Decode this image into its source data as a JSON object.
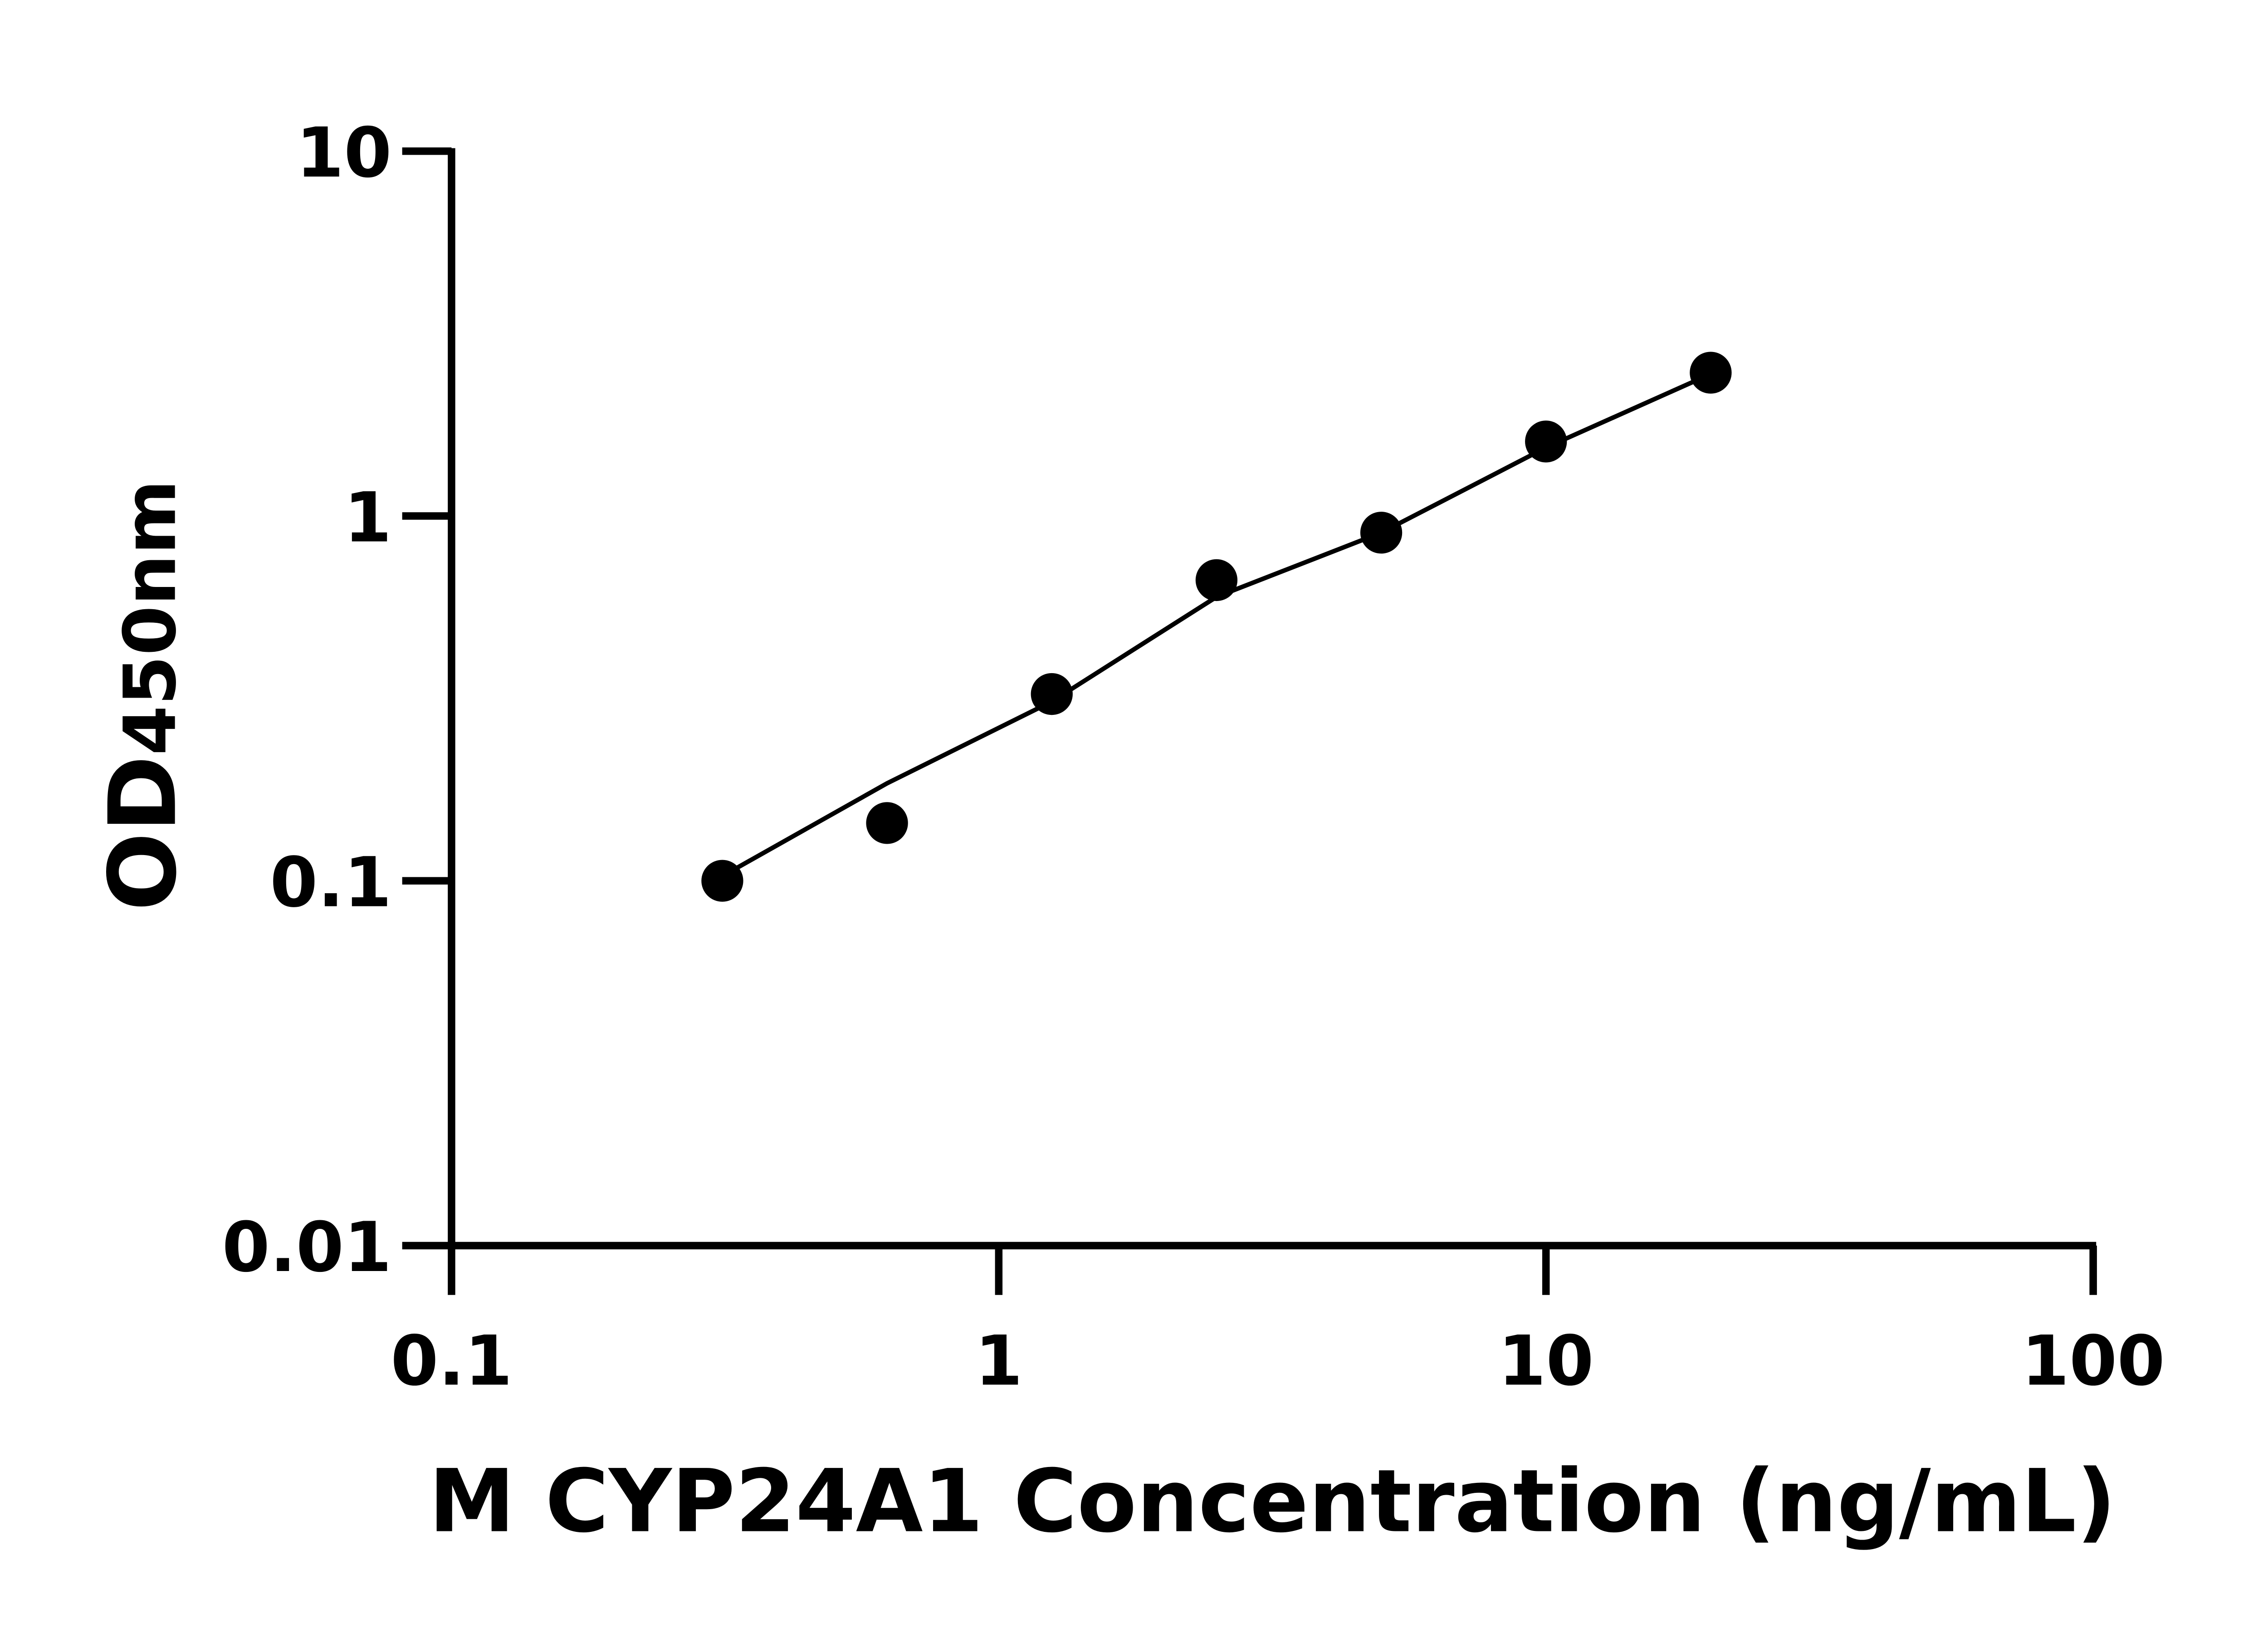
{
  "chart_data": {
    "type": "scatter",
    "title": "",
    "xlabel": "M CYP24A1 Concentration (ng/mL)",
    "ylabel_main": "OD",
    "ylabel_sub": "450nm",
    "x_scale": "log",
    "y_scale": "log",
    "xlim": [
      0.1,
      100
    ],
    "ylim": [
      0.01,
      10
    ],
    "x_ticks": [
      0.1,
      1,
      10,
      100
    ],
    "x_tick_labels": [
      "0.1",
      "1",
      "10",
      "100"
    ],
    "y_ticks": [
      0.01,
      0.1,
      1,
      10
    ],
    "y_tick_labels": [
      "0.01",
      "0.1",
      "1",
      "10"
    ],
    "grid": false,
    "points": {
      "x": [
        0.3125,
        0.625,
        1.25,
        2.5,
        5,
        10,
        20
      ],
      "y": [
        0.1,
        0.144,
        0.325,
        0.667,
        0.9,
        1.6,
        2.47
      ]
    },
    "fit_curve": {
      "x": [
        0.3125,
        0.625,
        1.25,
        2.5,
        5,
        10,
        20
      ],
      "y": [
        0.103,
        0.185,
        0.31,
        0.6,
        0.9,
        1.54,
        2.45
      ]
    },
    "colors": {
      "points": "#000000",
      "line": "#000000",
      "axes": "#000000"
    }
  }
}
